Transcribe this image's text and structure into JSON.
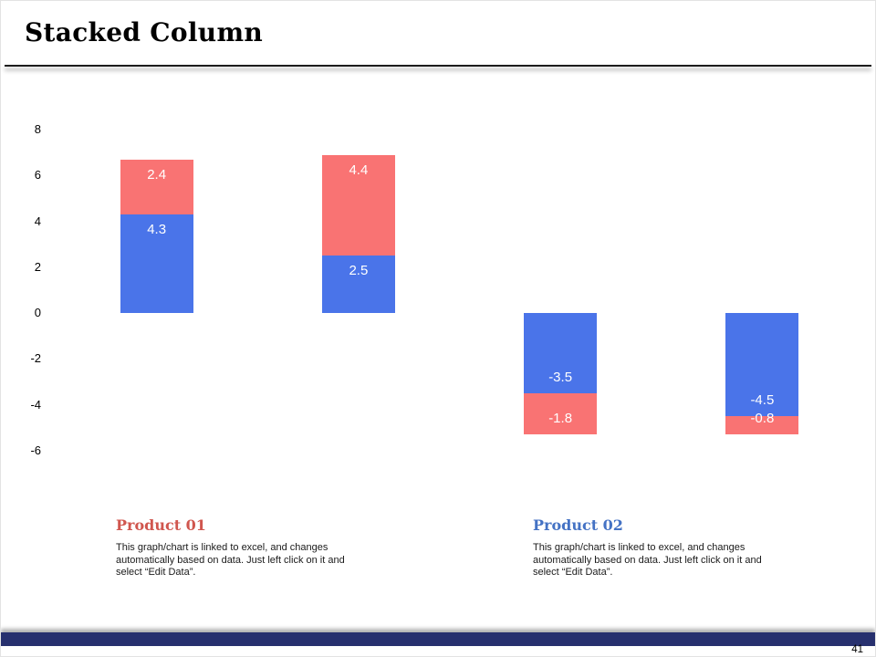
{
  "slide": {
    "title": "Stacked Column",
    "page_number": "41"
  },
  "chart_data": {
    "type": "bar",
    "stacked": true,
    "orientation": "vertical",
    "title": "",
    "xlabel": "",
    "ylabel": "",
    "categories": [
      "",
      "",
      "",
      ""
    ],
    "series": [
      {
        "name": "series-1",
        "color": "#4a74e9",
        "values": [
          4.3,
          2.5,
          -3.5,
          -4.5
        ]
      },
      {
        "name": "series-2",
        "color": "#f97373",
        "values": [
          2.4,
          4.4,
          -1.8,
          -0.8
        ]
      }
    ],
    "data_labels": true,
    "label_color": "#ffffff",
    "yticks": [
      8,
      6,
      4,
      2,
      0,
      -2,
      -4,
      -6
    ],
    "ylim": [
      -6.5,
      8
    ],
    "grid": false,
    "legend": "none"
  },
  "captions": [
    {
      "title": "Product 01",
      "color": "#d0564e",
      "body": "This graph/chart is linked to excel, and changes automatically based on data. Just left click on it and select “Edit Data”."
    },
    {
      "title": "Product 02",
      "color": "#4472c4",
      "body": "This graph/chart is linked to excel, and changes automatically based on data. Just left click on it and select “Edit Data”."
    }
  ]
}
